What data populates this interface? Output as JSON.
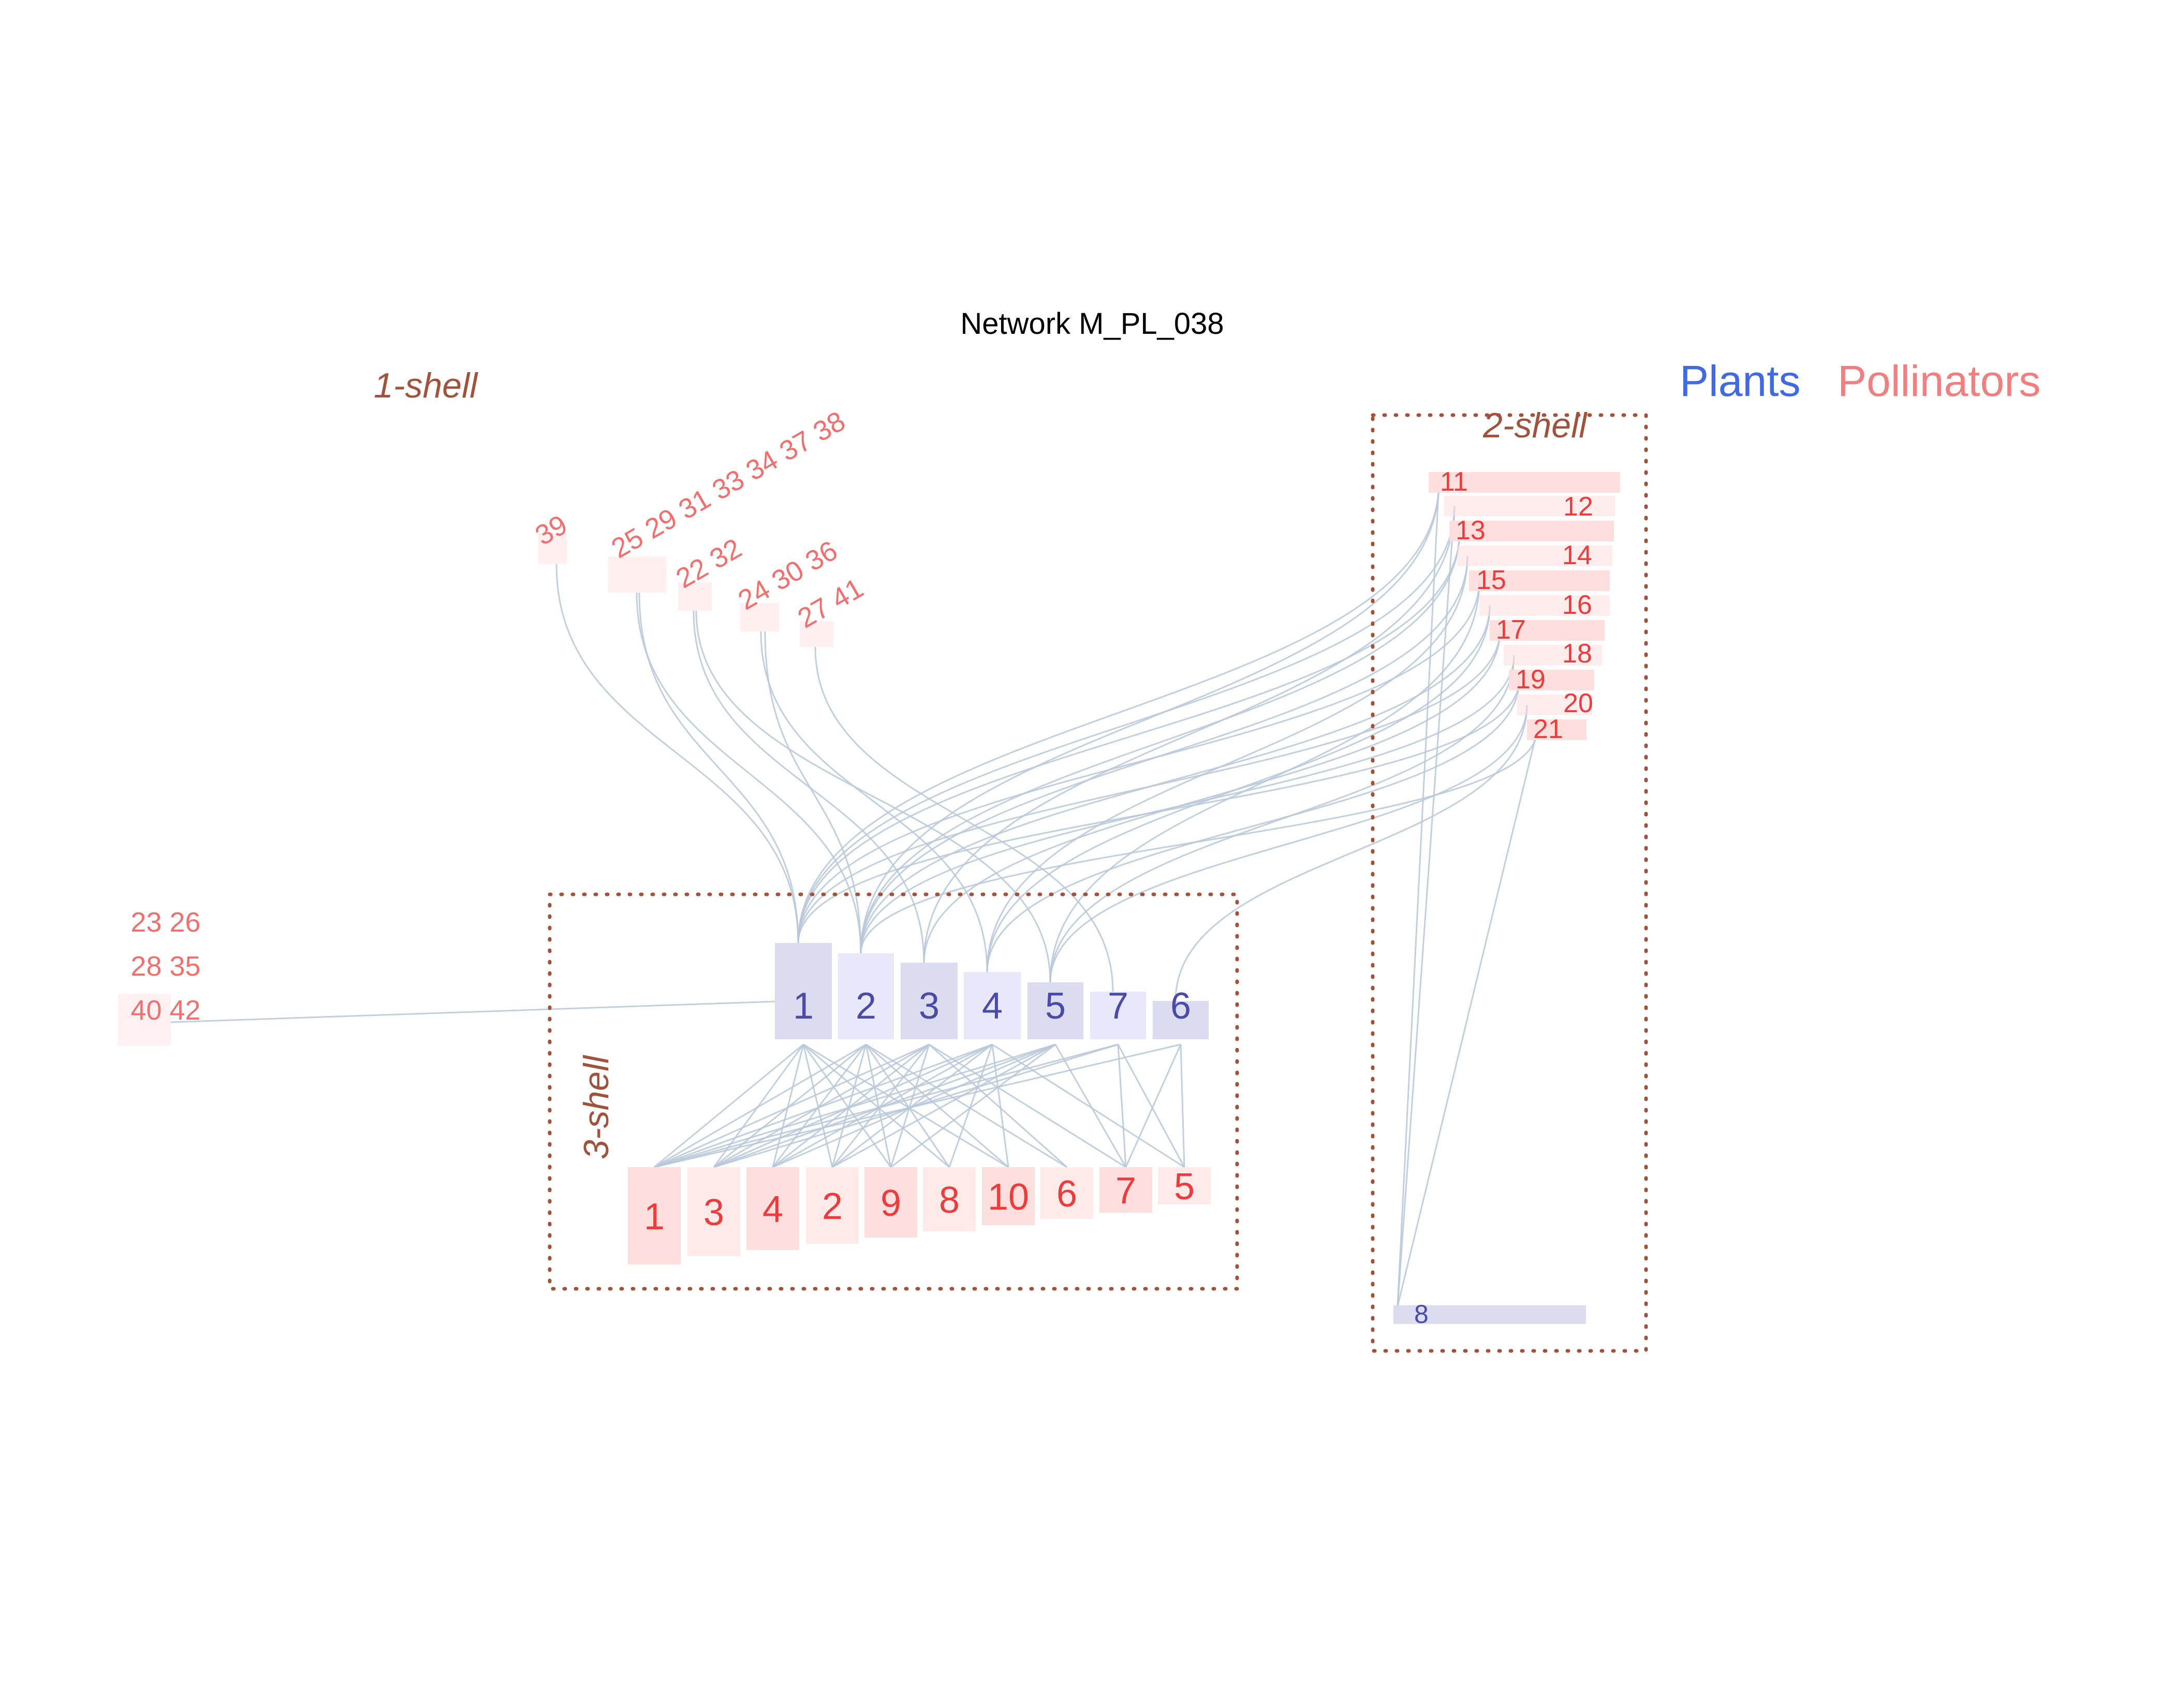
{
  "title": "Network M_PL_038",
  "legend": {
    "plants": "Plants",
    "pollinators": "Pollinators",
    "plants_color": "#4169e1",
    "pollinators_color": "#f08080"
  },
  "shells": {
    "one": "1-shell",
    "two": "2-shell",
    "three": "3-shell"
  },
  "colors": {
    "plant_fill_dark": "#dcdcf0",
    "plant_fill_light": "#e8e8fa",
    "pollinator_fill": "#ffdcdc",
    "link": "#b7c7d9",
    "shell_border": "#a0523d"
  },
  "core_plants": [
    "1",
    "2",
    "3",
    "4",
    "5",
    "7",
    "6"
  ],
  "core_pollinators": [
    "1",
    "3",
    "4",
    "2",
    "9",
    "8",
    "10",
    "6",
    "7",
    "5"
  ],
  "shell2_pollinators": [
    "11",
    "12",
    "13",
    "14",
    "15",
    "16",
    "17",
    "18",
    "19",
    "20",
    "21"
  ],
  "shell2_plants": [
    "8"
  ],
  "shell1_groups": [
    "39",
    "25 29 31 33 34 37  38",
    "22  32",
    "24 30  36",
    "27  41"
  ],
  "isolated_lines": [
    "23 26",
    "28 35",
    "40 42"
  ]
}
